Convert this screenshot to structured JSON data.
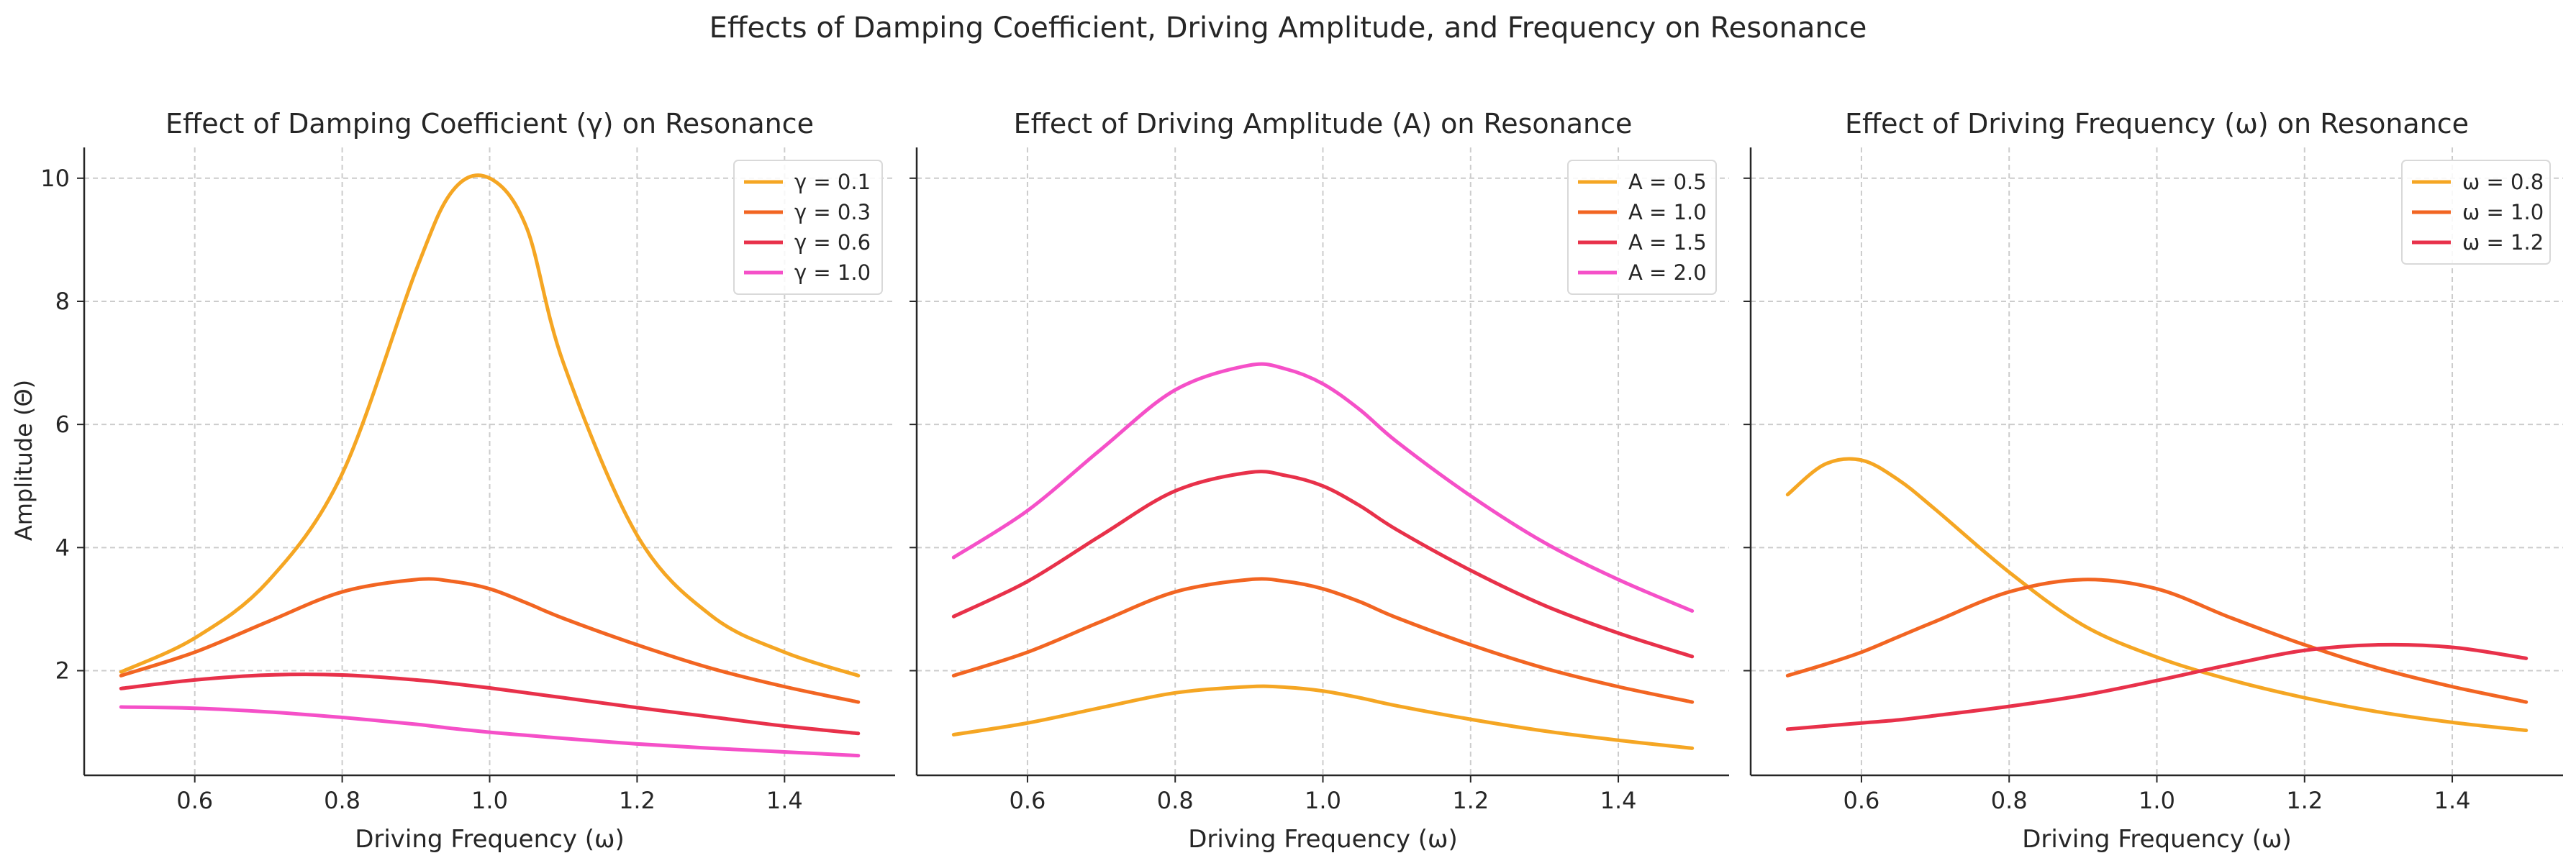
{
  "figure_title": "Effects of Damping Coefficient, Driving Amplitude, and Frequency on Resonance",
  "shared_ylabel": "Amplitude (Θ)",
  "chart_data": [
    {
      "type": "line",
      "title": "Effect of Damping Coefficient (γ) on Resonance",
      "xlabel": "Driving Frequency (ω)",
      "ylabel": "Amplitude (Θ)",
      "xlim": [
        0.45,
        1.55
      ],
      "ylim": [
        0.3,
        10.5
      ],
      "xticks": [
        "0.6",
        "0.8",
        "1.0",
        "1.2",
        "1.4"
      ],
      "yticks": [
        "2",
        "4",
        "6",
        "8",
        "10"
      ],
      "grid": true,
      "legend": "top-right",
      "x": [
        0.5,
        0.6,
        0.7,
        0.8,
        0.9,
        0.95,
        1.0,
        1.05,
        1.1,
        1.2,
        1.3,
        1.4,
        1.5
      ],
      "series": [
        {
          "name": "γ = 0.1",
          "color": "#f5a623",
          "values": [
            1.98,
            2.53,
            3.46,
            5.2,
            8.5,
            9.8,
            10.0,
            9.2,
            7.0,
            4.2,
            2.9,
            2.3,
            1.92
          ]
        },
        {
          "name": "γ = 0.3",
          "color": "#f26522",
          "values": [
            1.92,
            2.3,
            2.8,
            3.28,
            3.48,
            3.45,
            3.33,
            3.1,
            2.85,
            2.42,
            2.04,
            1.74,
            1.49
          ]
        },
        {
          "name": "γ = 0.6",
          "color": "#e8314a",
          "values": [
            1.71,
            1.85,
            1.93,
            1.93,
            1.85,
            1.79,
            1.72,
            1.64,
            1.56,
            1.4,
            1.25,
            1.1,
            0.98
          ]
        },
        {
          "name": "γ = 1.0",
          "color": "#f550c8",
          "values": [
            1.41,
            1.39,
            1.33,
            1.24,
            1.13,
            1.06,
            1.0,
            0.95,
            0.9,
            0.81,
            0.74,
            0.68,
            0.62
          ]
        }
      ]
    },
    {
      "type": "line",
      "title": "Effect of Driving Amplitude (A) on Resonance",
      "xlabel": "Driving Frequency (ω)",
      "xlim": [
        0.45,
        1.55
      ],
      "ylim": [
        0.3,
        10.5
      ],
      "xticks": [
        "0.6",
        "0.8",
        "1.0",
        "1.2",
        "1.4"
      ],
      "grid": true,
      "legend": "top-right",
      "x": [
        0.5,
        0.6,
        0.7,
        0.8,
        0.9,
        0.95,
        1.0,
        1.05,
        1.1,
        1.2,
        1.3,
        1.4,
        1.5
      ],
      "series": [
        {
          "name": "A = 0.5",
          "color": "#f5a623",
          "values": [
            0.96,
            1.15,
            1.4,
            1.64,
            1.74,
            1.73,
            1.67,
            1.56,
            1.43,
            1.21,
            1.02,
            0.87,
            0.74
          ]
        },
        {
          "name": "A = 1.0",
          "color": "#f26522",
          "values": [
            1.92,
            2.3,
            2.8,
            3.28,
            3.48,
            3.45,
            3.33,
            3.12,
            2.86,
            2.42,
            2.04,
            1.74,
            1.49
          ]
        },
        {
          "name": "A = 1.5",
          "color": "#e8314a",
          "values": [
            2.88,
            3.45,
            4.2,
            4.92,
            5.22,
            5.17,
            5.0,
            4.68,
            4.29,
            3.63,
            3.06,
            2.61,
            2.23
          ]
        },
        {
          "name": "A = 2.0",
          "color": "#f550c8",
          "values": [
            3.84,
            4.6,
            5.6,
            6.56,
            6.96,
            6.9,
            6.66,
            6.24,
            5.72,
            4.84,
            4.08,
            3.48,
            2.97
          ]
        }
      ]
    },
    {
      "type": "line",
      "title": "Effect of Driving Frequency (ω) on Resonance",
      "xlabel": "Driving Frequency (ω)",
      "xlim": [
        0.45,
        1.55
      ],
      "ylim": [
        0.3,
        10.5
      ],
      "xticks": [
        "0.6",
        "0.8",
        "1.0",
        "1.2",
        "1.4"
      ],
      "grid": true,
      "legend": "top-right",
      "x": [
        0.5,
        0.55,
        0.6,
        0.65,
        0.7,
        0.8,
        0.9,
        1.0,
        1.1,
        1.2,
        1.3,
        1.4,
        1.5
      ],
      "series": [
        {
          "name": "ω = 0.8",
          "color": "#f5a623",
          "values": [
            4.86,
            5.35,
            5.42,
            5.1,
            4.62,
            3.6,
            2.74,
            2.22,
            1.85,
            1.56,
            1.33,
            1.16,
            1.03
          ]
        },
        {
          "name": "ω = 1.0",
          "color": "#f26522",
          "values": [
            1.92,
            2.1,
            2.3,
            2.55,
            2.8,
            3.28,
            3.48,
            3.33,
            2.86,
            2.42,
            2.04,
            1.74,
            1.49
          ]
        },
        {
          "name": "ω = 1.2",
          "color": "#e8314a",
          "values": [
            1.05,
            1.1,
            1.15,
            1.2,
            1.27,
            1.42,
            1.6,
            1.84,
            2.1,
            2.33,
            2.42,
            2.38,
            2.2
          ]
        }
      ]
    }
  ]
}
